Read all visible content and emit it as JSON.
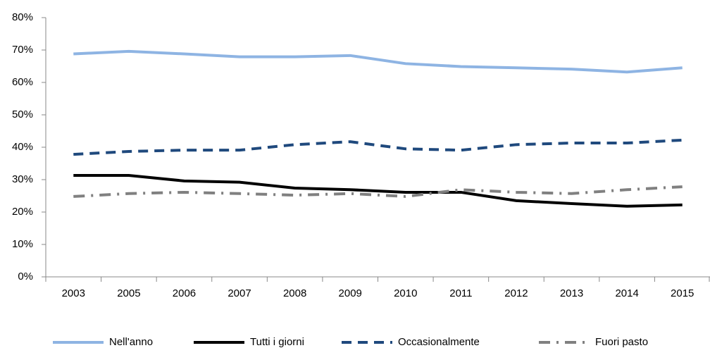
{
  "chart_data": {
    "type": "line",
    "categories": [
      "2003",
      "2005",
      "2006",
      "2007",
      "2008",
      "2009",
      "2010",
      "2011",
      "2012",
      "2013",
      "2014",
      "2015"
    ],
    "series": [
      {
        "name": "Nell'anno",
        "color": "#8eb4e3",
        "dash": "solid",
        "values": [
          68.8,
          69.6,
          68.8,
          67.9,
          67.9,
          68.3,
          65.8,
          64.9,
          64.5,
          64.1,
          63.2,
          64.5
        ]
      },
      {
        "name": "Tutti i giorni",
        "color": "#000000",
        "dash": "solid",
        "values": [
          31.3,
          31.3,
          29.6,
          29.2,
          27.4,
          26.9,
          26.1,
          26.1,
          23.5,
          22.6,
          21.8,
          22.2
        ]
      },
      {
        "name": "Occasionalmente",
        "color": "#1f497d",
        "dash": "dashed",
        "values": [
          37.8,
          38.7,
          39.1,
          39.1,
          40.8,
          41.7,
          39.5,
          39.1,
          40.8,
          41.3,
          41.3,
          42.2
        ]
      },
      {
        "name": "Fuori pasto",
        "color": "#808080",
        "dash": "dashdot",
        "values": [
          24.8,
          25.7,
          26.1,
          25.7,
          25.2,
          25.7,
          24.8,
          26.9,
          26.1,
          25.7,
          26.9,
          27.8
        ]
      }
    ],
    "ylim": [
      0,
      80
    ],
    "yticks": [
      {
        "value": 0,
        "label": "0%"
      },
      {
        "value": 10,
        "label": "10%"
      },
      {
        "value": 20,
        "label": "20%"
      },
      {
        "value": 30,
        "label": "30%"
      },
      {
        "value": 40,
        "label": "40%"
      },
      {
        "value": 50,
        "label": "50%"
      },
      {
        "value": 60,
        "label": "60%"
      },
      {
        "value": 70,
        "label": "70%"
      },
      {
        "value": 80,
        "label": "80%"
      }
    ],
    "legend": "bottom"
  }
}
